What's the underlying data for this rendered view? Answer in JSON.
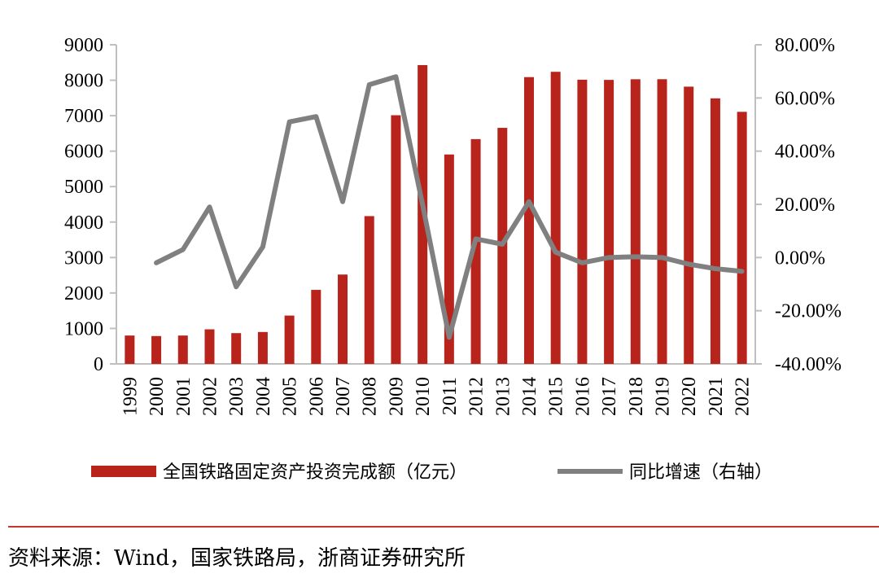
{
  "chart_data": {
    "type": "bar+line",
    "categories": [
      "1999",
      "2000",
      "2001",
      "2002",
      "2003",
      "2004",
      "2005",
      "2006",
      "2007",
      "2008",
      "2009",
      "2010",
      "2011",
      "2012",
      "2013",
      "2014",
      "2015",
      "2016",
      "2017",
      "2018",
      "2019",
      "2020",
      "2021",
      "2022"
    ],
    "series": [
      {
        "name": "全国铁路固定资产投资完成额（亿元）",
        "type": "bar",
        "axis": "left",
        "color": "#B8241C",
        "values": [
          800,
          785,
          800,
          975,
          868,
          900,
          1363,
          2088,
          2520,
          4168,
          7013,
          8427,
          5906,
          6339,
          6657,
          8088,
          8238,
          8015,
          8010,
          8028,
          8029,
          7819,
          7489,
          7109
        ]
      },
      {
        "name": "同比增速（右轴）",
        "type": "line",
        "axis": "right",
        "color": "#808080",
        "values": [
          null,
          -0.02,
          0.03,
          0.19,
          -0.11,
          0.04,
          0.51,
          0.53,
          0.21,
          0.65,
          0.68,
          0.2,
          -0.3,
          0.07,
          0.05,
          0.21,
          0.02,
          -0.02,
          0.0,
          0.003,
          0.0,
          -0.025,
          -0.042,
          -0.052
        ]
      }
    ],
    "y_left": {
      "ylim": [
        0,
        9000
      ],
      "ticks": [
        "0",
        "1000",
        "2000",
        "3000",
        "4000",
        "5000",
        "6000",
        "7000",
        "8000",
        "9000"
      ]
    },
    "y_right": {
      "ylim": [
        -0.4,
        0.8
      ],
      "ticks": [
        "-40.00%",
        "-20.00%",
        "0.00%",
        "20.00%",
        "40.00%",
        "60.00%",
        "80.00%"
      ]
    },
    "grid": false,
    "legend_position": "bottom"
  },
  "source": "资料来源：Wind，国家铁路局，浙商证券研究所",
  "colors": {
    "bar": "#B8241C",
    "line": "#808080",
    "source_rule": "#C0392B",
    "axis": "#BFBFBF"
  }
}
